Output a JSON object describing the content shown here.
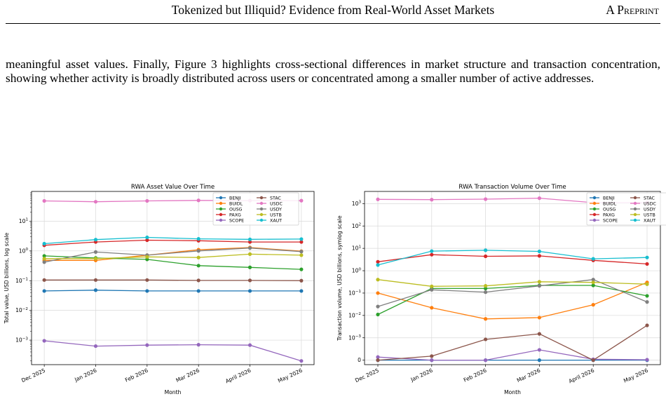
{
  "header": {
    "title": "Tokenized but Illiquid? Evidence from Real-World Asset Markets",
    "label": "A Preprint"
  },
  "body": {
    "paragraph": "meaningful asset values. Finally, Figure 3 highlights cross-sectional differences in market structure and transaction concentration, showing whether activity is broadly distributed across users or concentrated among a smaller number of active addresses."
  },
  "colors": {
    "BENJI": "#1f77b4",
    "BUIDL": "#ff7f0e",
    "OUSG": "#2ca02c",
    "PAXG": "#d62728",
    "SCOPE": "#9467bd",
    "STAC": "#8c564b",
    "USDC": "#e377c2",
    "USDY": "#7f7f7f",
    "USTB": "#bcbd22",
    "XAUT": "#17becf"
  },
  "chart_data": [
    {
      "type": "line",
      "title": "RWA Asset Value Over Time",
      "xlabel": "Month",
      "ylabel": "Total value, USD billions, log scale",
      "yscale": "log",
      "ylim": [
        0.00015,
        100
      ],
      "yticks": [
        {
          "v": 0.001,
          "b": "10",
          "e": "−3"
        },
        {
          "v": 0.01,
          "b": "10",
          "e": "−2"
        },
        {
          "v": 0.1,
          "b": "10",
          "e": "−1"
        },
        {
          "v": 1,
          "b": "10",
          "e": "0"
        },
        {
          "v": 10,
          "b": "10",
          "e": "1"
        }
      ],
      "categories": [
        "Dec 2025",
        "Jan 2026",
        "Feb 2026",
        "Mar 2026",
        "April 2026",
        "May 2026"
      ],
      "grid": true,
      "legend": "top-right",
      "series": [
        {
          "name": "BENJI",
          "values": [
            0.045,
            0.048,
            0.045,
            0.045,
            0.045,
            0.045
          ]
        },
        {
          "name": "BUIDL",
          "values": [
            0.48,
            0.48,
            0.72,
            1.1,
            1.3,
            0.98
          ]
        },
        {
          "name": "OUSG",
          "values": [
            0.68,
            0.58,
            0.52,
            0.32,
            0.28,
            0.24
          ]
        },
        {
          "name": "PAXG",
          "values": [
            1.55,
            2.0,
            2.3,
            2.2,
            2.0,
            2.0
          ]
        },
        {
          "name": "SCOPE",
          "values": [
            0.00095,
            0.00063,
            0.00068,
            0.0007,
            0.00068,
            0.0002
          ]
        },
        {
          "name": "STAC",
          "values": [
            0.105,
            0.105,
            0.105,
            0.102,
            0.102,
            0.1
          ]
        },
        {
          "name": "USDC",
          "values": [
            48,
            45,
            48,
            50,
            49,
            49
          ]
        },
        {
          "name": "USDY",
          "values": [
            0.42,
            0.92,
            0.72,
            1.0,
            1.25,
            0.95
          ]
        },
        {
          "name": "USTB",
          "values": [
            0.55,
            0.55,
            0.63,
            0.6,
            0.78,
            0.72
          ]
        },
        {
          "name": "XAUT",
          "values": [
            1.75,
            2.4,
            2.85,
            2.55,
            2.45,
            2.5
          ]
        }
      ]
    },
    {
      "type": "line",
      "title": "RWA Transaction Volume Over Time",
      "xlabel": "Month",
      "ylabel": "Transaction volume, USD billions, symlog scale",
      "yscale": "symlog",
      "ylim": [
        -0.0002,
        3500
      ],
      "yticks": [
        {
          "v": 0,
          "b": "0",
          "e": ""
        },
        {
          "v": 0.001,
          "b": "10",
          "e": "−3"
        },
        {
          "v": 0.01,
          "b": "10",
          "e": "−2"
        },
        {
          "v": 0.1,
          "b": "10",
          "e": "−1"
        },
        {
          "v": 1,
          "b": "10",
          "e": "0"
        },
        {
          "v": 10,
          "b": "10",
          "e": "1"
        },
        {
          "v": 100,
          "b": "10",
          "e": "2"
        },
        {
          "v": 1000,
          "b": "10",
          "e": "3"
        }
      ],
      "categories": [
        "Dec 2025",
        "Jan 2026",
        "Feb 2026",
        "Mar 2026",
        "April 2026",
        "May 2026"
      ],
      "grid": true,
      "legend": "top-right",
      "series": [
        {
          "name": "BENJI",
          "values": [
            0,
            0,
            0,
            0,
            0,
            0
          ]
        },
        {
          "name": "BUIDL",
          "values": [
            0.1,
            0.022,
            0.007,
            0.008,
            0.03,
            0.3
          ]
        },
        {
          "name": "OUSG",
          "values": [
            0.011,
            0.16,
            0.16,
            0.22,
            0.22,
            0.075
          ]
        },
        {
          "name": "PAXG",
          "values": [
            2.5,
            5.2,
            4.4,
            4.6,
            2.9,
            2.0
          ]
        },
        {
          "name": "SCOPE",
          "values": [
            0.00014,
            0,
            0,
            0.00046,
            4e-05,
            2e-05
          ]
        },
        {
          "name": "STAC",
          "values": [
            0,
            0.00018,
            0.00093,
            0.0015,
            0,
            0.0036
          ]
        },
        {
          "name": "USDC",
          "values": [
            1550,
            1500,
            1580,
            1750,
            1100,
            1100
          ]
        },
        {
          "name": "USDY",
          "values": [
            0.025,
            0.14,
            0.11,
            0.21,
            0.4,
            0.04
          ]
        },
        {
          "name": "USTB",
          "values": [
            0.4,
            0.2,
            0.21,
            0.32,
            0.3,
            0.25
          ]
        },
        {
          "name": "XAUT",
          "values": [
            1.8,
            7.5,
            8.2,
            7.3,
            3.4,
            3.9
          ]
        }
      ]
    }
  ]
}
